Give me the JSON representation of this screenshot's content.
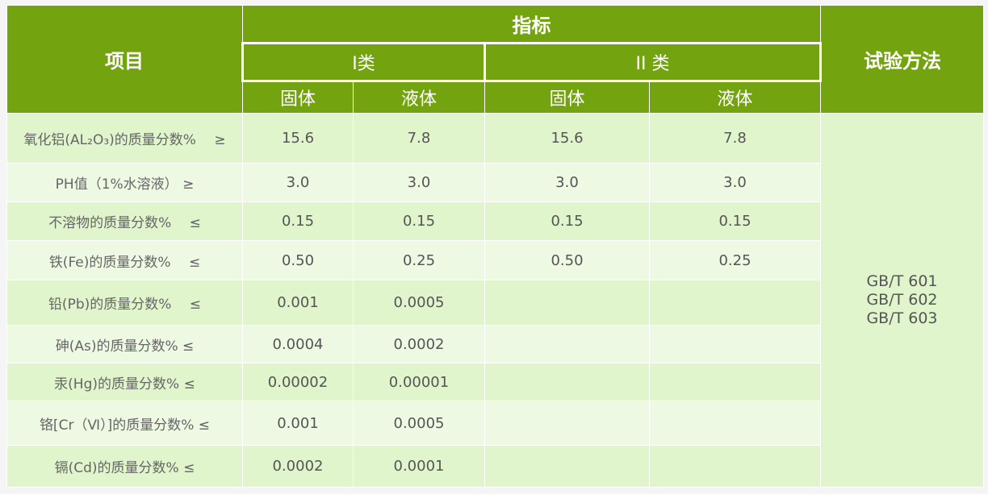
{
  "header": {
    "item": "项目",
    "indicator": "指标",
    "method": "试验方法",
    "class1": "I类",
    "class2": "II 类",
    "solid": "固体",
    "liquid": "液体"
  },
  "rows": [
    {
      "label": "氧化铝(AL₂O₃)的质量分数%　 ≥",
      "v": [
        "15.6",
        "7.8",
        "15.6",
        "7.8"
      ]
    },
    {
      "label": "PH值（1%水溶液） ≥",
      "v": [
        "3.0",
        "3.0",
        "3.0",
        "3.0"
      ]
    },
    {
      "label": "不溶物的质量分数%　 ≤",
      "v": [
        "0.15",
        "0.15",
        "0.15",
        "0.15"
      ]
    },
    {
      "label": "铁(Fe)的质量分数%　 ≤",
      "v": [
        "0.50",
        "0.25",
        "0.50",
        "0.25"
      ]
    },
    {
      "label": "铅(Pb)的质量分数%　 ≤",
      "v": [
        "0.001",
        "0.0005",
        "",
        ""
      ]
    },
    {
      "label": "砷(As)的质量分数% ≤",
      "v": [
        "0.0004",
        "0.0002",
        "",
        ""
      ]
    },
    {
      "label": "汞(Hg)的质量分数% ≤",
      "v": [
        "0.00002",
        "0.00001",
        "",
        ""
      ]
    },
    {
      "label": "铬[Cr（Ⅵ）]的质量分数% ≤",
      "v": [
        "0.001",
        "0.0005",
        "",
        ""
      ]
    },
    {
      "label": "镉(Cd)的质量分数% ≤",
      "v": [
        "0.0002",
        "0.0001",
        "",
        ""
      ]
    }
  ],
  "method": [
    "GB/T 601",
    "GB/T 602",
    "GB/T 603"
  ]
}
